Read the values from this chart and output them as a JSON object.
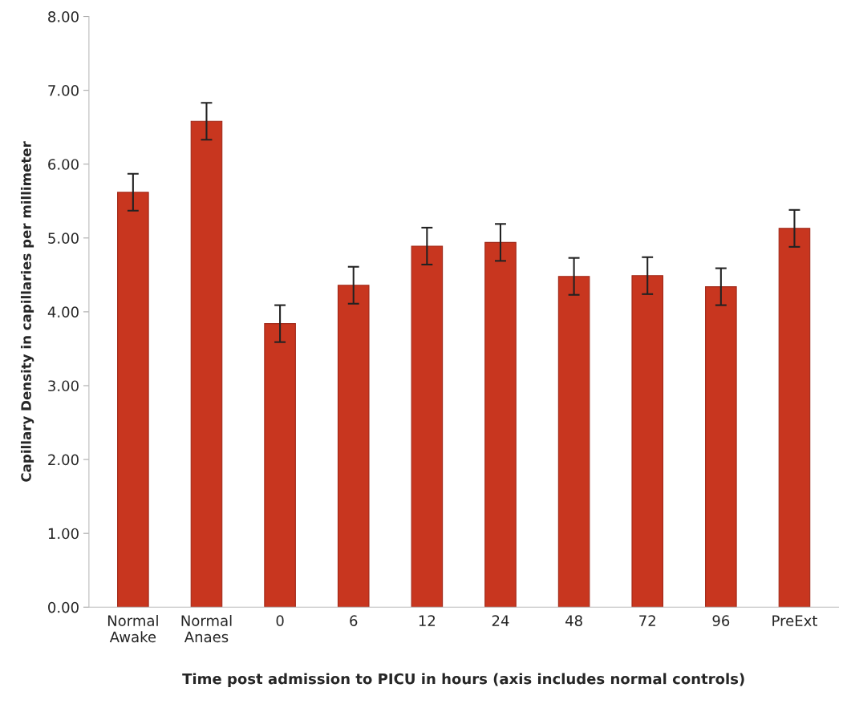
{
  "chart_data": {
    "type": "bar",
    "categories": [
      "Normal\nAwake",
      "Normal\nAnaes",
      "0",
      "6",
      "12",
      "24",
      "48",
      "72",
      "96",
      "PreExt"
    ],
    "values": [
      5.62,
      6.58,
      3.84,
      4.36,
      4.89,
      4.94,
      4.48,
      4.49,
      4.34,
      5.13
    ],
    "errors": [
      0.25,
      0.25,
      0.25,
      0.25,
      0.25,
      0.25,
      0.25,
      0.25,
      0.25,
      0.25
    ],
    "color": "#c8361f",
    "ylabel": "Capillary Density in capillaries per millimeter",
    "xlabel": "Time post admission to PICU in hours (axis includes normal controls)",
    "ylim": [
      0,
      8
    ],
    "yticks": [
      {
        "value": 0,
        "label": "0.00"
      },
      {
        "value": 1,
        "label": "1.00"
      },
      {
        "value": 2,
        "label": "2.00"
      },
      {
        "value": 3,
        "label": "3.00"
      },
      {
        "value": 4,
        "label": "4.00"
      },
      {
        "value": 5,
        "label": "5.00"
      },
      {
        "value": 6,
        "label": "6.00"
      },
      {
        "value": 7,
        "label": "7.00"
      },
      {
        "value": 8,
        "label": "8.00"
      }
    ],
    "grid": false,
    "legend": false
  }
}
